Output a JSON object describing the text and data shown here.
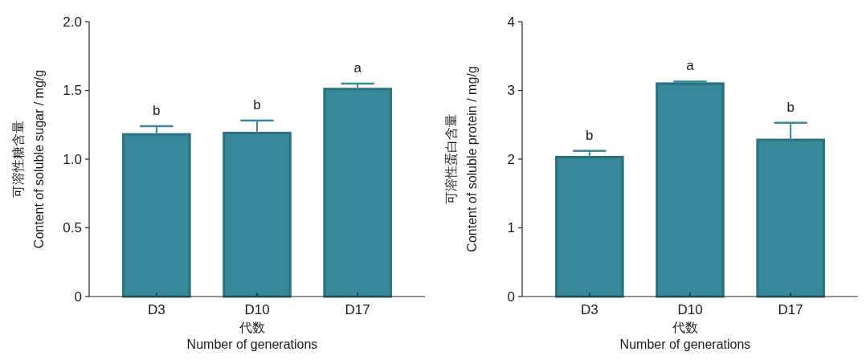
{
  "chart_data": [
    {
      "type": "bar",
      "categories": [
        "D3",
        "D10",
        "D17"
      ],
      "values": [
        1.18,
        1.19,
        1.51
      ],
      "errors": [
        0.06,
        0.09,
        0.04
      ],
      "color": "#36889a",
      "ylim": [
        0,
        2
      ],
      "yticks": [
        0,
        0.5,
        {
          "value": 1,
          "label": "1.0"
        },
        1.5,
        {
          "value": 2,
          "label": "2.0"
        }
      ],
      "xlabel": "代数\nNumber of generations",
      "ylabel": "可溶性糖含量\nContent of soluble sugar / mg/g",
      "annotations": [
        {
          "text": "b",
          "x": "D3",
          "y": 1.24
        },
        {
          "text": "b",
          "x": "D10",
          "y": 1.28
        },
        {
          "text": "a",
          "x": "D17",
          "y": 1.55
        }
      ]
    },
    {
      "type": "bar",
      "categories": [
        "D3",
        "D10",
        "D17"
      ],
      "values": [
        2.03,
        3.1,
        2.28
      ],
      "errors": [
        0.09,
        0.03,
        0.25
      ],
      "color": "#36889a",
      "ylim": [
        0,
        4
      ],
      "yticks": [
        0,
        1,
        2,
        3,
        4
      ],
      "xlabel": "代数\nNumber of generations",
      "ylabel": "可溶性蛋白含量\nContent of soluble protein / mg/g",
      "annotations": [
        {
          "text": "b",
          "x": "D3",
          "y": 2.12
        },
        {
          "text": "a",
          "x": "D10",
          "y": 3.13
        },
        {
          "text": "b",
          "x": "D17",
          "y": 2.53
        }
      ]
    }
  ]
}
